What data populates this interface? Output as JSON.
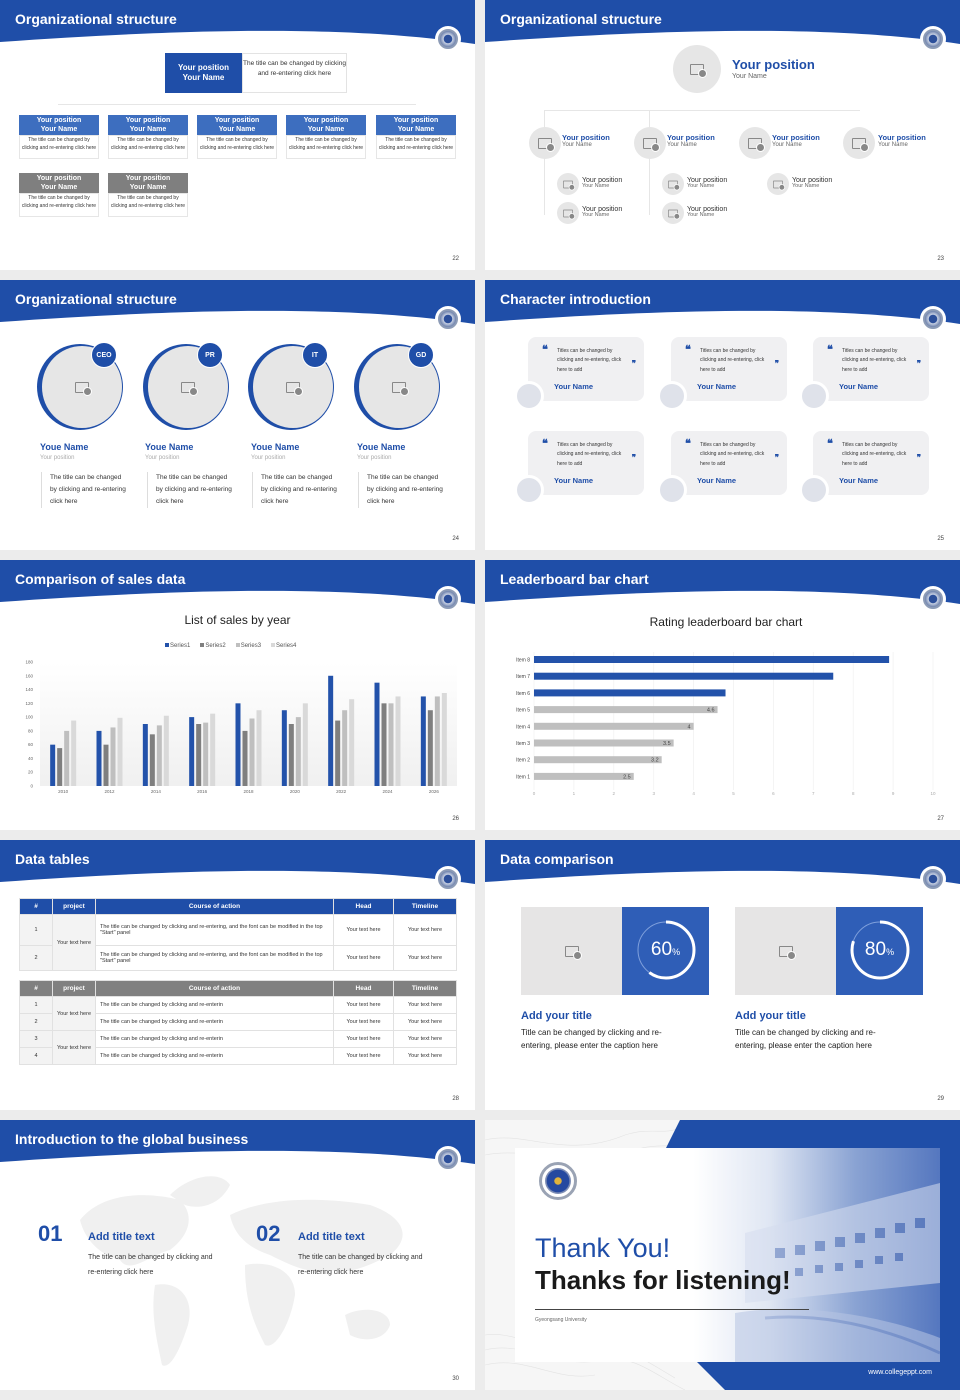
{
  "colors": {
    "brand_blue": "#1f4ea8",
    "bar_blue": "#2352aa",
    "gray_dark": "#7f7f7f",
    "gray_mid": "#bfbfbf",
    "gray_light": "#d9d9d9",
    "page_bg": "#ececec"
  },
  "slides": {
    "s22": {
      "title": "Organizational structure",
      "page": "22",
      "top": {
        "position": "Your position",
        "name": "Your Name",
        "desc": "The title can be changed by clicking and re-entering click here"
      },
      "cards": [
        {
          "position": "Your position",
          "name": "Your Name",
          "desc": "The title can be changed by clicking and re-entering click here",
          "style": "blue"
        },
        {
          "position": "Your position",
          "name": "Your Name",
          "desc": "The title can be changed by clicking and re-entering click here",
          "style": "blue"
        },
        {
          "position": "Your position",
          "name": "Your Name",
          "desc": "The title can be changed by clicking and re-entering click here",
          "style": "blue"
        },
        {
          "position": "Your position",
          "name": "Your Name",
          "desc": "The title can be changed by clicking and re-entering click here",
          "style": "blue"
        },
        {
          "position": "Your position",
          "name": "Your Name",
          "desc": "The title can be changed by clicking and re-entering click here",
          "style": "blue"
        },
        {
          "position": "Your position",
          "name": "Your Name",
          "desc": "The title can be changed by clicking and re-entering click here",
          "style": "gray"
        },
        {
          "position": "Your position",
          "name": "Your Name",
          "desc": "The title can be changed by clicking and re-entering click here",
          "style": "gray"
        }
      ]
    },
    "s23": {
      "title": "Organizational structure",
      "page": "23",
      "top": {
        "position": "Your position",
        "name": "Your Name"
      },
      "level2": [
        {
          "position": "Your position",
          "name": "Your Name"
        },
        {
          "position": "Your position",
          "name": "Your Name"
        },
        {
          "position": "Your position",
          "name": "Your Name"
        },
        {
          "position": "Your position",
          "name": "Your Name"
        }
      ],
      "level3": [
        {
          "position": "Your position",
          "name": "Your Name"
        },
        {
          "position": "Your position",
          "name": "Your Name"
        },
        {
          "position": "Your position",
          "name": "Your Name"
        },
        {
          "position": "Your position",
          "name": "Your Name"
        },
        {
          "position": "Your position",
          "name": "Your Name"
        }
      ]
    },
    "s24": {
      "title": "Organizational structure",
      "page": "24",
      "people": [
        {
          "badge": "CEO",
          "name": "Youe Name",
          "position": "Your position",
          "desc": "The title can be changed by clicking and re-entering click here"
        },
        {
          "badge": "PR",
          "name": "Youe Name",
          "position": "Your position",
          "desc": "The title can be changed by clicking and re-entering click here"
        },
        {
          "badge": "IT",
          "name": "Youe Name",
          "position": "Your position",
          "desc": "The title can be changed by clicking and re-entering click here"
        },
        {
          "badge": "GD",
          "name": "Youe Name",
          "position": "Your position",
          "desc": "The title can be changed by clicking and re-entering click here"
        }
      ]
    },
    "s25": {
      "title": "Character introduction",
      "page": "25",
      "quotes": [
        {
          "text": "Titles can be changed by clicking and re-entering, click here to add",
          "name": "Your Name"
        },
        {
          "text": "Titles can be changed by clicking and re-entering, click here to add",
          "name": "Your Name"
        },
        {
          "text": "Titles can be changed by clicking and re-entering, click here to add",
          "name": "Your Name"
        },
        {
          "text": "Titles can be changed by clicking and re-entering, click here to add",
          "name": "Your Name"
        },
        {
          "text": "Titles can be changed by clicking and re-entering, click here to add",
          "name": "Your Name"
        },
        {
          "text": "Titles can be changed by clicking and re-entering, click here to add",
          "name": "Your Name"
        }
      ]
    },
    "s26": {
      "title": "Comparison of sales data",
      "page": "26"
    },
    "s27": {
      "title": "Leaderboard bar chart",
      "page": "27"
    },
    "s28": {
      "title": "Data tables",
      "page": "28",
      "headers": [
        "#",
        "project",
        "Course of action",
        "Head",
        "Timeline"
      ],
      "table1": {
        "project": "Your text here",
        "rows": [
          {
            "n": "1",
            "action": "The title can be changed by clicking and re-entering, and the font can be modified in the top \"Start\" panel",
            "head": "Your text here",
            "timeline": "Your text here"
          },
          {
            "n": "2",
            "action": "The title can be changed by clicking and re-entering, and the font can be modified in the top \"Start\" panel",
            "head": "Your text here",
            "timeline": "Your text here"
          }
        ]
      },
      "table2": {
        "projects": [
          "Your text here",
          "Your text here"
        ],
        "rows": [
          {
            "n": "1",
            "action": "The title can be changed by clicking and re-enterin",
            "head": "Your text here",
            "timeline": "Your text here"
          },
          {
            "n": "2",
            "action": "The title can be changed by clicking and re-enterin",
            "head": "Your text here",
            "timeline": "Your text here"
          },
          {
            "n": "3",
            "action": "The title can be changed by clicking and re-enterin",
            "head": "Your text here",
            "timeline": "Your text here"
          },
          {
            "n": "4",
            "action": "The title can be changed by clicking and re-enterin",
            "head": "Your text here",
            "timeline": "Your text here"
          }
        ]
      }
    },
    "s29": {
      "title": "Data comparison",
      "page": "29",
      "items": [
        {
          "percent": "60",
          "unit": "%",
          "title": "Add your title",
          "desc": "Title can be changed by clicking and re-entering, please enter the caption here"
        },
        {
          "percent": "80",
          "unit": "%",
          "title": "Add your title",
          "desc": "Title can be changed by clicking and re-entering, please enter the caption here"
        }
      ]
    },
    "s30": {
      "title": "Introduction to the global business",
      "page": "30",
      "items": [
        {
          "num": "01",
          "title": "Add title text",
          "desc": "The title can be changed by clicking and re-entering click here"
        },
        {
          "num": "02",
          "title": "Add title text",
          "desc": "The title can be changed by clicking and re-entering click here"
        }
      ]
    },
    "s31": {
      "line1": "Thank You!",
      "line2": "Thanks for listening!",
      "university": "Gyeongsang University",
      "website": "www.collegeppt.com"
    }
  },
  "chart_data": [
    {
      "type": "bar",
      "title": "List of sales by year",
      "xlabel": "",
      "ylabel": "",
      "categories": [
        "2010",
        "2012",
        "2014",
        "2016",
        "2018",
        "2020",
        "2022",
        "2024",
        "2026"
      ],
      "series": [
        {
          "name": "Series1",
          "color": "#2352aa",
          "values": [
            60,
            80,
            90,
            100,
            120,
            110,
            160,
            150,
            130
          ]
        },
        {
          "name": "Series2",
          "color": "#7f7f7f",
          "values": [
            55,
            60,
            75,
            90,
            80,
            90,
            95,
            120,
            110
          ]
        },
        {
          "name": "Series3",
          "color": "#bfbfbf",
          "values": [
            80,
            85,
            88,
            92,
            98,
            100,
            110,
            120,
            130
          ]
        },
        {
          "name": "Series4",
          "color": "#d9d9d9",
          "values": [
            95,
            99,
            102,
            105,
            110,
            120,
            126,
            130,
            135
          ]
        }
      ],
      "yticks": [
        "0",
        "20",
        "40",
        "60",
        "80",
        "100",
        "120",
        "140",
        "160",
        "180"
      ],
      "ylim": [
        0,
        180
      ],
      "legend": "top",
      "grid": false
    },
    {
      "type": "bar",
      "orientation": "horizontal",
      "title": "Rating leaderboard bar chart",
      "categories": [
        "Item 1",
        "Item 2",
        "Item 3",
        "Item 4",
        "Item 5",
        "Item 6",
        "Item 7",
        "Item 8"
      ],
      "values": [
        2.5,
        3.2,
        3.5,
        4,
        4.6,
        4.8,
        7.5,
        8.9
      ],
      "labels": [
        "2.5",
        "3.2",
        "3.5",
        "4",
        "4.6",
        "4.8",
        "7.5",
        "8.9"
      ],
      "highlight": [
        "Item 6",
        "Item 7",
        "Item 8"
      ],
      "xticks": [
        "0",
        "1",
        "2",
        "3",
        "4",
        "5",
        "6",
        "7",
        "8",
        "9",
        "10"
      ],
      "xlim": [
        0,
        10
      ],
      "grid": true
    }
  ]
}
